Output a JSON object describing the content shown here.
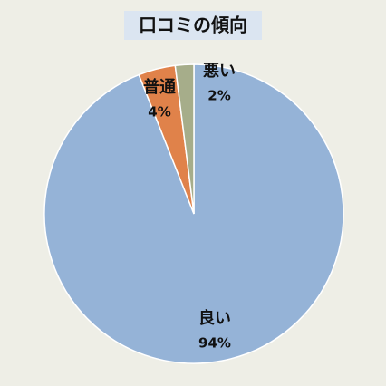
{
  "chart_data": {
    "type": "pie",
    "title": "口コミの傾向",
    "categories": [
      "良い",
      "普通",
      "悪い"
    ],
    "values": [
      94,
      4,
      2
    ],
    "value_labels": [
      "94%",
      "4%",
      "2%"
    ],
    "colors": [
      "#95b3d7",
      "#e0824a",
      "#a6ad8a"
    ]
  }
}
